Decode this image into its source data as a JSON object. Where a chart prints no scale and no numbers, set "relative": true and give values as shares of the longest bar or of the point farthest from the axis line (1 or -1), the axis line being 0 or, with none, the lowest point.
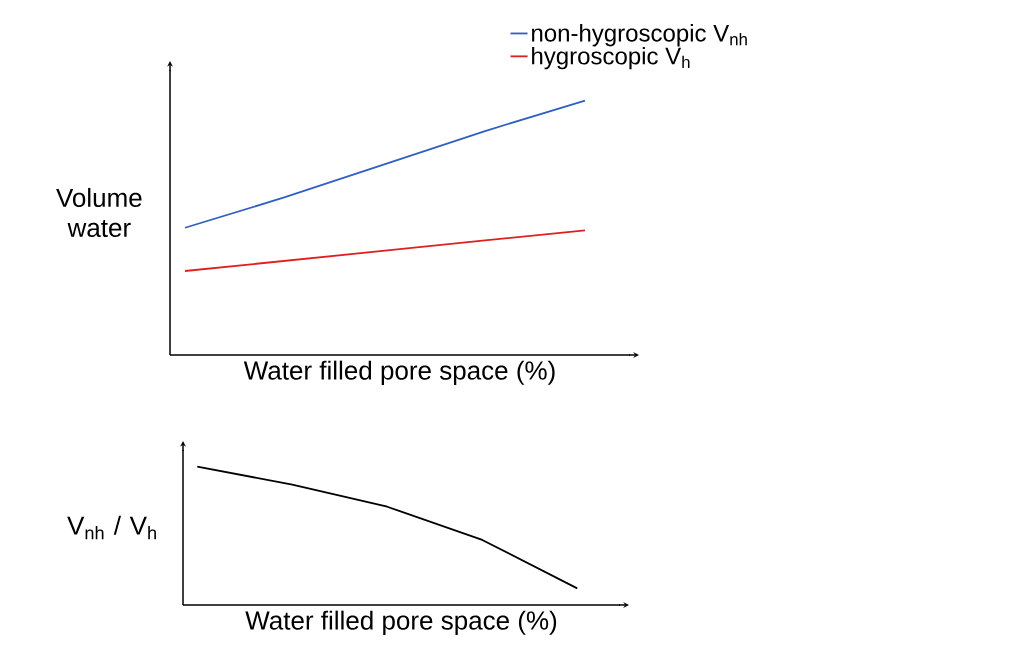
{
  "chart_data": [
    {
      "type": "line",
      "relative": true,
      "xlabel": "Water filled pore space (%)",
      "ylabel": "Volume water",
      "legend": "top right",
      "categories": [
        null,
        null,
        null,
        null,
        null
      ],
      "series": [
        {
          "name": "non-hygroscopic V$_{nh}$",
          "color": "#3060c0",
          "values": [
            0.5,
            0.62,
            0.75,
            0.88,
            1.0
          ]
        },
        {
          "name": "hygroscopic V$_{h}$",
          "color": "#e02020",
          "values": [
            0.33,
            0.37,
            0.41,
            0.45,
            0.49
          ]
        }
      ]
    },
    {
      "type": "line",
      "relative": true,
      "xlabel": "Water filled pore space (%)",
      "ylabel": "V$_{nh}$ / V$_{h}$",
      "categories": [
        null,
        null,
        null,
        null,
        null
      ],
      "series": [
        {
          "color": "#000000",
          "values": [
            1.0,
            0.87,
            0.71,
            0.47,
            0.12
          ]
        }
      ]
    }
  ]
}
